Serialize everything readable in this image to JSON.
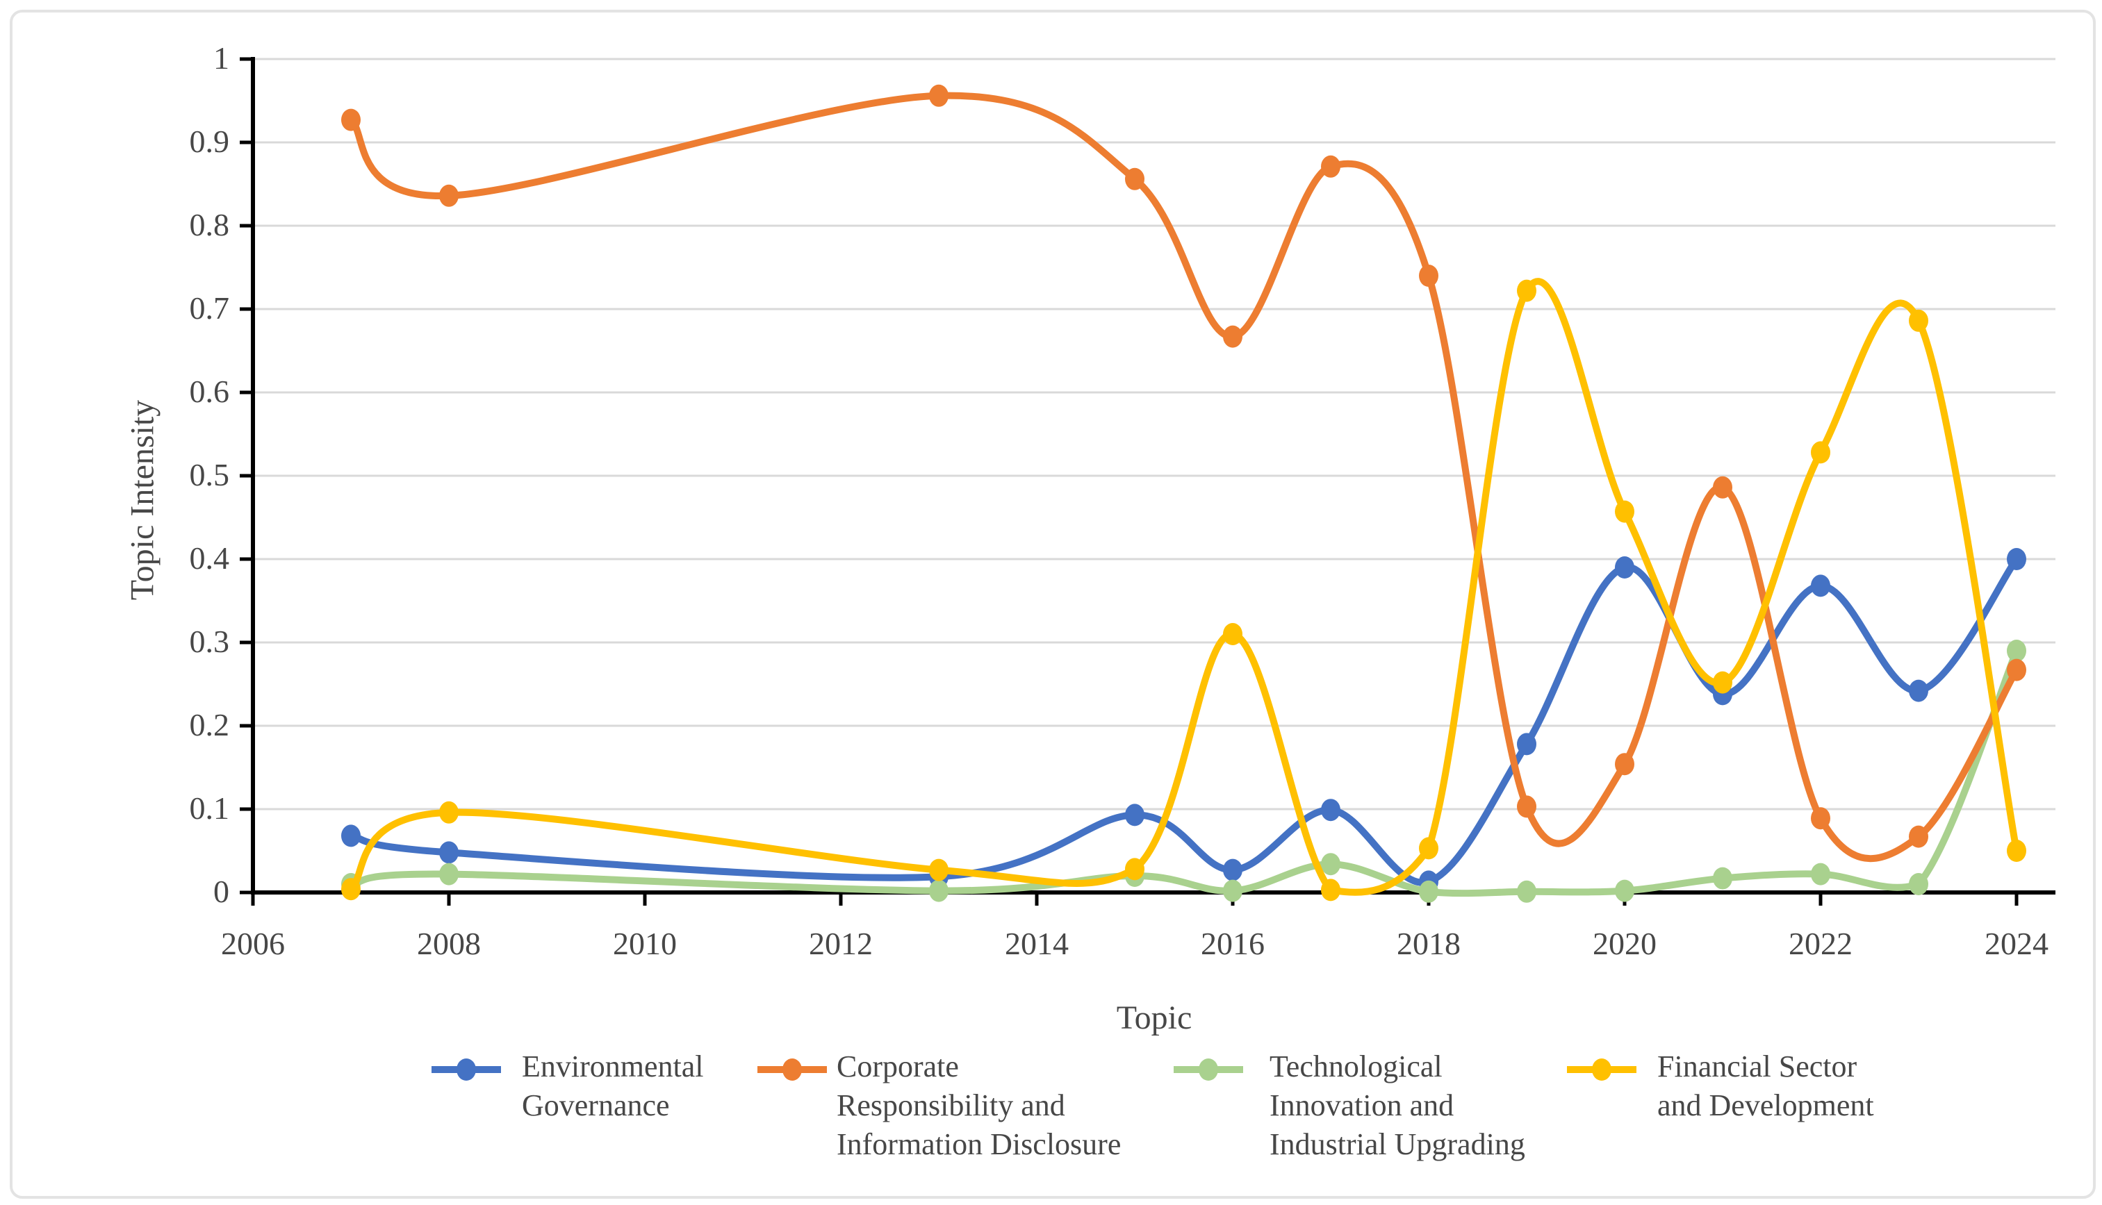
{
  "figure": {
    "background": "#ffffff",
    "border_color": "#e3e3e3"
  },
  "chart_data": {
    "type": "line",
    "title": "",
    "xlabel": "Topic",
    "ylabel": "Topic Intensity",
    "smoothed": true,
    "grid": "horizontal",
    "legend_position": "bottom",
    "x": [
      2007,
      2008,
      2013,
      2015,
      2016,
      2017,
      2018,
      2019,
      2020,
      2021,
      2022,
      2023,
      2024
    ],
    "x_axis": {
      "min": 2006,
      "max": 2024,
      "tick_step": 2,
      "tick_labels": [
        "2006",
        "2008",
        "2010",
        "2012",
        "2014",
        "2016",
        "2018",
        "2020",
        "2022",
        "2024"
      ]
    },
    "y_axis": {
      "min": 0,
      "max": 1,
      "tick_step": 0.1,
      "tick_labels": [
        "0",
        "0.1",
        "0.2",
        "0.3",
        "0.4",
        "0.5",
        "0.6",
        "0.7",
        "0.8",
        "0.9",
        "1"
      ]
    },
    "series": [
      {
        "name": "Environmental Governance",
        "legend_lines": [
          "Environmental",
          "Governance"
        ],
        "color": "#4472C4",
        "values": [
          0.068,
          0.048,
          0.019,
          0.093,
          0.027,
          0.099,
          0.013,
          0.178,
          0.39,
          0.238,
          0.368,
          0.242,
          0.4
        ]
      },
      {
        "name": "Corporate Responsibility and Information Disclosure",
        "legend_lines": [
          "Corporate",
          "Responsibility and",
          "Information Disclosure"
        ],
        "color": "#ED7D31",
        "values": [
          0.927,
          0.836,
          0.956,
          0.856,
          0.667,
          0.871,
          0.74,
          0.103,
          0.154,
          0.486,
          0.089,
          0.067,
          0.267
        ]
      },
      {
        "name": "Technological Innovation and Industrial Upgrading",
        "legend_lines": [
          "Technological",
          "Innovation and",
          "Industrial Upgrading"
        ],
        "color": "#A9D18E",
        "values": [
          0.01,
          0.022,
          0.002,
          0.02,
          0.002,
          0.034,
          0.001,
          0.001,
          0.002,
          0.017,
          0.022,
          0.01,
          0.29
        ]
      },
      {
        "name": "Financial Sector and Development",
        "legend_lines": [
          "Financial Sector",
          "and Development"
        ],
        "color": "#FFC000",
        "values": [
          0.004,
          0.096,
          0.027,
          0.028,
          0.31,
          0.003,
          0.053,
          0.722,
          0.457,
          0.252,
          0.528,
          0.686,
          0.05
        ]
      }
    ]
  }
}
